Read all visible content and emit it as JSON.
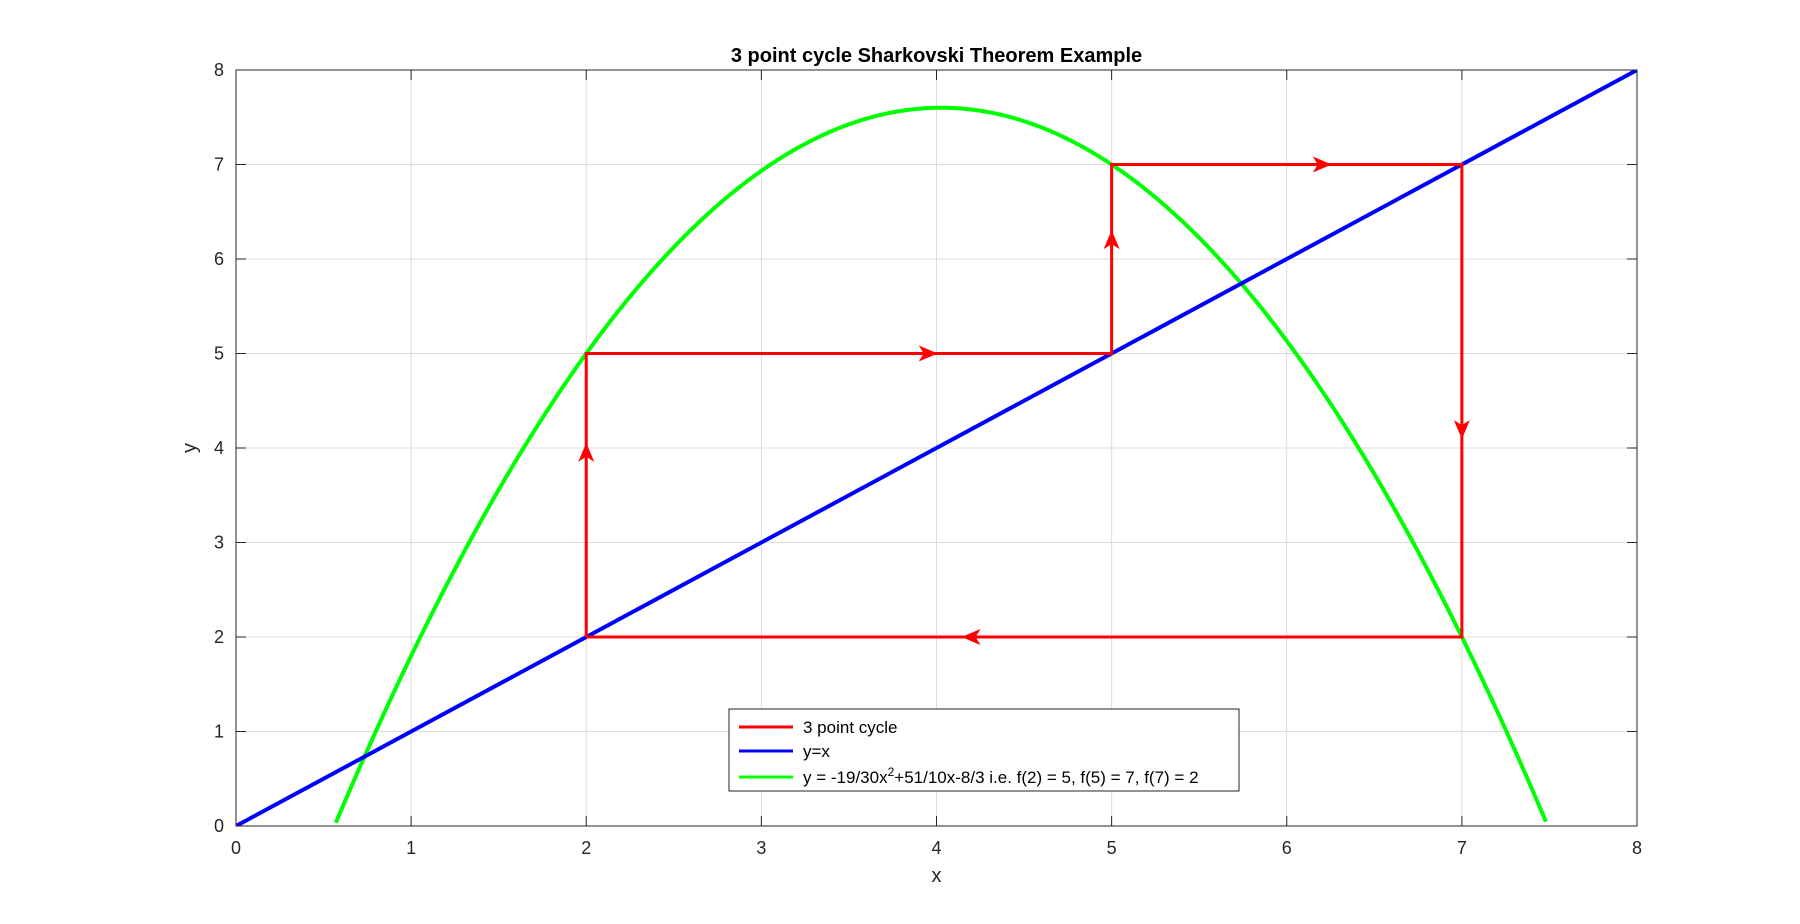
{
  "chart_data": {
    "type": "line",
    "title": "3 point cycle Sharkovski Theorem Example",
    "xlabel": "x",
    "ylabel": "y",
    "xlim": [
      0,
      8
    ],
    "ylim": [
      0,
      8
    ],
    "xticks": [
      "0",
      "1",
      "2",
      "3",
      "4",
      "5",
      "6",
      "7",
      "8"
    ],
    "yticks": [
      "0",
      "1",
      "2",
      "3",
      "4",
      "5",
      "6",
      "7",
      "8"
    ],
    "grid": true,
    "legend_position": "bottom-center",
    "series": [
      {
        "name": "3 point cycle",
        "color": "#ff0000",
        "x": [
          2,
          2,
          5,
          5,
          7,
          7,
          2
        ],
        "y": [
          2,
          5,
          5,
          7,
          7,
          2,
          2
        ]
      },
      {
        "name": "y=x",
        "color": "#0000ff",
        "x": [
          0,
          8
        ],
        "y": [
          0,
          8
        ]
      },
      {
        "name": "y = -19/30x",
        "name_sup": "2",
        "name_rest": "+51/10x-8/3 i.e. f(2) = 5, f(5) = 7, f(7) = 2",
        "color": "#00ff00",
        "function": {
          "a": -0.6333333,
          "b": 5.1,
          "c": -2.6666667
        },
        "x_range": [
          0.57,
          7.48
        ]
      }
    ],
    "arrows": [
      {
        "x": 2,
        "y": 3.95,
        "dir": "up"
      },
      {
        "x": 3.95,
        "y": 5,
        "dir": "right"
      },
      {
        "x": 5,
        "y": 6.2,
        "dir": "up"
      },
      {
        "x": 6.2,
        "y": 7,
        "dir": "right"
      },
      {
        "x": 7,
        "y": 4.2,
        "dir": "down"
      },
      {
        "x": 4.2,
        "y": 2,
        "dir": "left"
      }
    ]
  }
}
